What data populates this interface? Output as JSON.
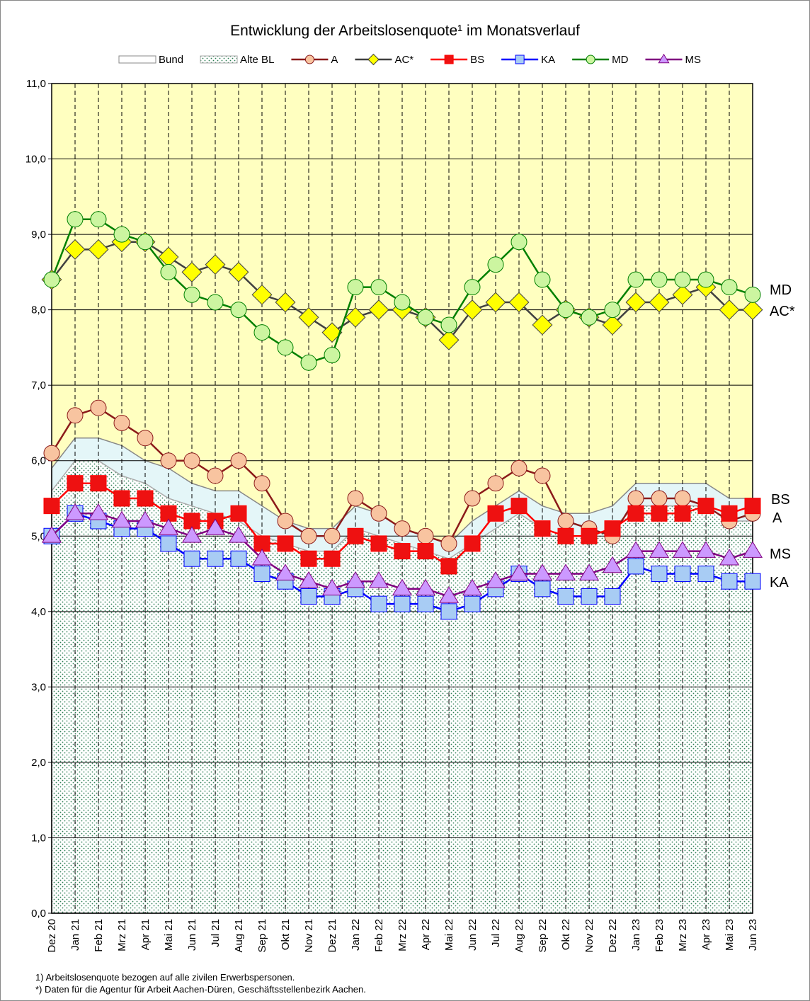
{
  "chart_data": {
    "type": "line",
    "title": "Entwicklung der Arbeitslosenquote¹ im Monatsverlauf",
    "footnotes": [
      "1) Arbeitslosenquote bezogen auf alle zivilen Erwerbspersonen.",
      "*) Daten für die Agentur für Arbeit Aachen-Düren, Geschäftsstellenbezirk Aachen."
    ],
    "categories": [
      "Dez 20",
      "Jan 21",
      "Feb 21",
      "Mrz 21",
      "Apr 21",
      "Mai 21",
      "Jun 21",
      "Jul 21",
      "Aug 21",
      "Sep 21",
      "Okt 21",
      "Nov 21",
      "Dez 21",
      "Jan 22",
      "Feb 22",
      "Mrz 22",
      "Apr 22",
      "Mai 22",
      "Jun 22",
      "Jul 22",
      "Aug 22",
      "Sep 22",
      "Okt 22",
      "Nov 22",
      "Dez 22",
      "Jan 23",
      "Feb 23",
      "Mrz 23",
      "Apr 23",
      "Mai 23",
      "Jun 23"
    ],
    "ylim": [
      0,
      11
    ],
    "yticks": [
      {
        "value": 0,
        "label": "0,0"
      },
      {
        "value": 1,
        "label": "1,0"
      },
      {
        "value": 2,
        "label": "2,0"
      },
      {
        "value": 3,
        "label": "3,0"
      },
      {
        "value": 4,
        "label": "4,0"
      },
      {
        "value": 5,
        "label": "5,0"
      },
      {
        "value": 6,
        "label": "6,0"
      },
      {
        "value": 7,
        "label": "7,0"
      },
      {
        "value": 8,
        "label": "8,0"
      },
      {
        "value": 9,
        "label": "9,0"
      },
      {
        "value": 10,
        "label": "10,0"
      },
      {
        "value": 11,
        "label": "11,0"
      }
    ],
    "grid": true,
    "background": "#ffffc0",
    "series": [
      {
        "name": "Bund",
        "type": "area",
        "color": "#888888",
        "fill": "#e4f6f8",
        "values": [
          5.9,
          6.3,
          6.3,
          6.2,
          6.0,
          5.9,
          5.7,
          5.6,
          5.6,
          5.4,
          5.2,
          5.1,
          5.1,
          5.4,
          5.3,
          5.1,
          5.0,
          4.9,
          5.2,
          5.4,
          5.6,
          5.4,
          5.3,
          5.3,
          5.4,
          5.7,
          5.7,
          5.7,
          5.7,
          5.5,
          5.5
        ]
      },
      {
        "name": "Alte BL",
        "type": "area",
        "color": "#aaaaaa",
        "fill": "dots",
        "values": [
          5.6,
          6.0,
          6.0,
          5.8,
          5.7,
          5.5,
          5.4,
          5.3,
          5.2,
          5.0,
          4.9,
          4.8,
          4.8,
          5.1,
          5.0,
          4.9,
          4.8,
          4.7,
          4.9,
          5.1,
          5.3,
          5.1,
          5.0,
          5.0,
          5.1,
          5.4,
          5.4,
          5.4,
          5.4,
          5.2,
          5.2
        ]
      },
      {
        "name": "A",
        "marker": "circle",
        "color": "#8b1a1a",
        "marker_color": "#f8c4a0",
        "values": [
          6.1,
          6.6,
          6.7,
          6.5,
          6.3,
          6.0,
          6.0,
          5.8,
          6.0,
          5.7,
          5.2,
          5.0,
          5.0,
          5.5,
          5.3,
          5.1,
          5.0,
          4.9,
          5.5,
          5.7,
          5.9,
          5.8,
          5.2,
          5.1,
          5.0,
          5.5,
          5.5,
          5.5,
          5.4,
          5.2,
          5.3
        ]
      },
      {
        "name": "AC*",
        "marker": "diamond",
        "color": "#404040",
        "marker_color": "#ffff00",
        "values": [
          8.4,
          8.8,
          8.8,
          8.9,
          8.9,
          8.7,
          8.5,
          8.6,
          8.5,
          8.2,
          8.1,
          7.9,
          7.7,
          7.9,
          8.0,
          8.0,
          7.9,
          7.6,
          8.0,
          8.1,
          8.1,
          7.8,
          8.0,
          7.9,
          7.8,
          8.1,
          8.1,
          8.2,
          8.3,
          8.0,
          8.0
        ]
      },
      {
        "name": "BS",
        "marker": "square",
        "color": "#ff0000",
        "marker_color": "#ee1111",
        "values": [
          5.4,
          5.7,
          5.7,
          5.5,
          5.5,
          5.3,
          5.2,
          5.2,
          5.3,
          4.9,
          4.9,
          4.7,
          4.7,
          5.0,
          4.9,
          4.8,
          4.8,
          4.6,
          4.9,
          5.3,
          5.4,
          5.1,
          5.0,
          5.0,
          5.1,
          5.3,
          5.3,
          5.3,
          5.4,
          5.3,
          5.4
        ]
      },
      {
        "name": "KA",
        "marker": "square",
        "color": "#0000ff",
        "marker_color": "#a8ccf4",
        "values": [
          5.0,
          5.3,
          5.2,
          5.1,
          5.1,
          4.9,
          4.7,
          4.7,
          4.7,
          4.5,
          4.4,
          4.2,
          4.2,
          4.3,
          4.1,
          4.1,
          4.1,
          4.0,
          4.1,
          4.3,
          4.5,
          4.3,
          4.2,
          4.2,
          4.2,
          4.6,
          4.5,
          4.5,
          4.5,
          4.4,
          4.4
        ]
      },
      {
        "name": "MD",
        "marker": "circle",
        "color": "#008000",
        "marker_color": "#ccf5a0",
        "values": [
          8.4,
          9.2,
          9.2,
          9.0,
          8.9,
          8.5,
          8.2,
          8.1,
          8.0,
          7.7,
          7.5,
          7.3,
          7.4,
          8.3,
          8.3,
          8.1,
          7.9,
          7.8,
          8.3,
          8.6,
          8.9,
          8.4,
          8.0,
          7.9,
          8.0,
          8.4,
          8.4,
          8.4,
          8.4,
          8.3,
          8.2
        ]
      },
      {
        "name": "MS",
        "marker": "triangle",
        "color": "#800080",
        "marker_color": "#cc99ff",
        "values": [
          5.0,
          5.3,
          5.3,
          5.2,
          5.2,
          5.1,
          5.0,
          5.1,
          5.0,
          4.7,
          4.5,
          4.4,
          4.3,
          4.4,
          4.4,
          4.3,
          4.3,
          4.2,
          4.3,
          4.4,
          4.5,
          4.5,
          4.5,
          4.5,
          4.6,
          4.8,
          4.8,
          4.8,
          4.8,
          4.7,
          4.8
        ]
      }
    ]
  }
}
